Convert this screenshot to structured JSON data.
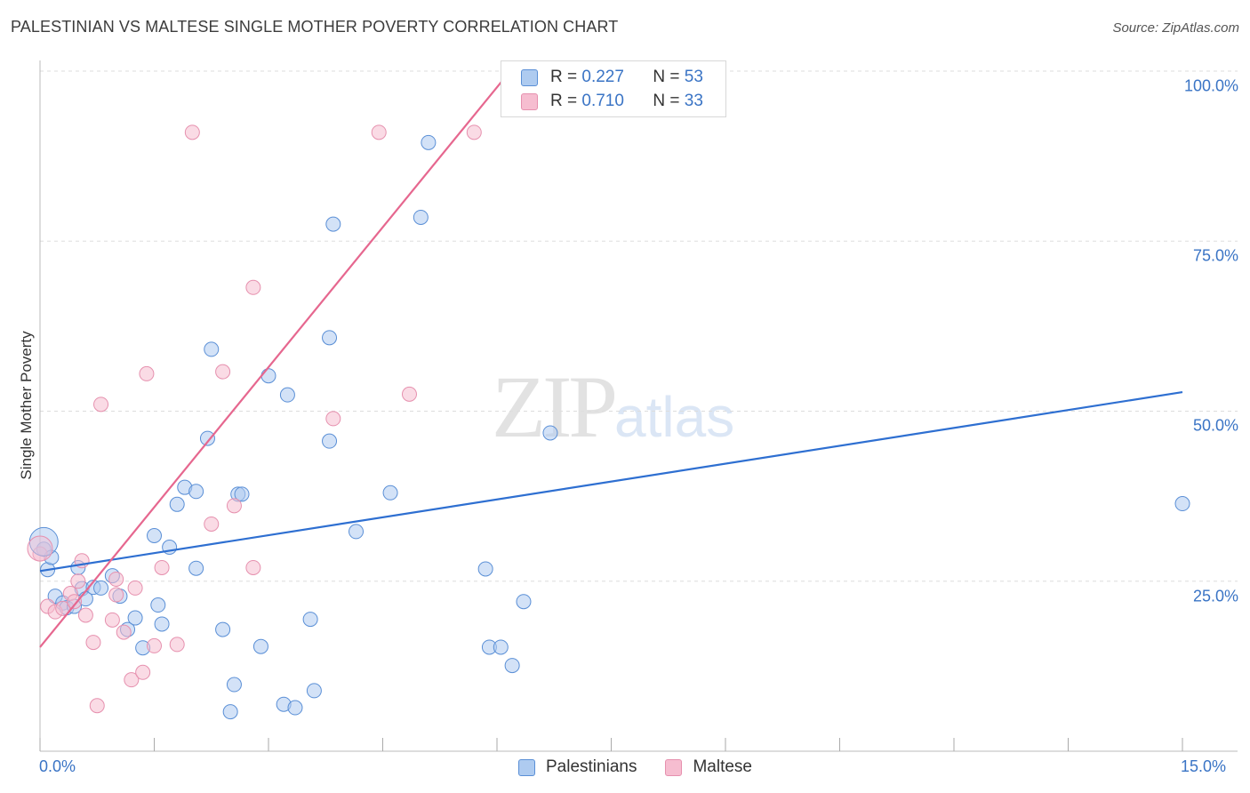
{
  "header": {
    "title": "PALESTINIAN VS MALTESE SINGLE MOTHER POVERTY CORRELATION CHART",
    "source": "Source: ZipAtlas.com"
  },
  "watermark": {
    "zip": "ZIP",
    "atlas": "atlas"
  },
  "colors": {
    "blue": "#3a74c5",
    "blue_fill": "#aecbf0",
    "blue_stroke": "#5a8fd6",
    "blue_line": "#2e6fd1",
    "pink": "#e8709a",
    "pink_fill": "#f6bdd0",
    "pink_stroke": "#e690ae",
    "pink_line": "#e6678f",
    "grid": "#dddddd"
  },
  "legend": {
    "rows": [
      {
        "r_label": "R =",
        "r_value": "0.227",
        "n_label": "N =",
        "n_value": "53"
      },
      {
        "r_label": "R =",
        "r_value": "0.710",
        "n_label": "N =",
        "n_value": "33"
      }
    ],
    "bottom": [
      {
        "label": "Palestinians"
      },
      {
        "label": "Maltese"
      }
    ]
  },
  "chart_data": {
    "type": "scatter",
    "title": "PALESTINIAN VS MALTESE SINGLE MOTHER POVERTY CORRELATION CHART",
    "xlabel": "",
    "ylabel": "Single Mother Poverty",
    "xlim": [
      0,
      15
    ],
    "ylim": [
      0,
      100
    ],
    "x_tick_labels": [
      "0.0%",
      "15.0%"
    ],
    "y_tick_labels": [
      {
        "value": 25,
        "label": "25.0%"
      },
      {
        "value": 50,
        "label": "50.0%"
      },
      {
        "value": 75,
        "label": "75.0%"
      },
      {
        "value": 100,
        "label": "100.0%"
      }
    ],
    "grid": true,
    "series": [
      {
        "name": "Palestinians",
        "r": 0.227,
        "n": 53,
        "trend": {
          "x": [
            0,
            15
          ],
          "y": [
            26.5,
            52.8
          ]
        },
        "points": [
          [
            0.05,
            29.7
          ],
          [
            0.1,
            26.7
          ],
          [
            0.2,
            22.8
          ],
          [
            0.3,
            21.8
          ],
          [
            0.35,
            21.1
          ],
          [
            0.45,
            21.3
          ],
          [
            0.55,
            23.9
          ],
          [
            0.6,
            22.4
          ],
          [
            0.7,
            24.1
          ],
          [
            0.8,
            24.0
          ],
          [
            0.95,
            25.8
          ],
          [
            1.05,
            22.8
          ],
          [
            1.15,
            17.9
          ],
          [
            1.25,
            19.6
          ],
          [
            1.35,
            15.2
          ],
          [
            1.5,
            31.7
          ],
          [
            1.55,
            21.5
          ],
          [
            1.6,
            18.7
          ],
          [
            1.7,
            30.0
          ],
          [
            1.8,
            36.3
          ],
          [
            1.9,
            38.8
          ],
          [
            2.05,
            38.2
          ],
          [
            2.05,
            26.9
          ],
          [
            2.2,
            46.0
          ],
          [
            2.25,
            59.1
          ],
          [
            2.4,
            17.9
          ],
          [
            2.5,
            5.8
          ],
          [
            2.55,
            9.8
          ],
          [
            2.6,
            37.8
          ],
          [
            2.65,
            37.8
          ],
          [
            2.9,
            15.4
          ],
          [
            3.0,
            55.2
          ],
          [
            3.25,
            52.4
          ],
          [
            3.2,
            6.9
          ],
          [
            3.35,
            6.4
          ],
          [
            3.55,
            19.4
          ],
          [
            3.6,
            8.9
          ],
          [
            3.8,
            45.6
          ],
          [
            3.85,
            77.5
          ],
          [
            3.8,
            60.8
          ],
          [
            4.15,
            32.3
          ],
          [
            4.6,
            38.0
          ],
          [
            5.0,
            78.5
          ],
          [
            5.1,
            89.5
          ],
          [
            5.85,
            26.8
          ],
          [
            5.9,
            15.3
          ],
          [
            6.05,
            15.3
          ],
          [
            6.2,
            12.6
          ],
          [
            6.35,
            22.0
          ],
          [
            6.7,
            46.8
          ],
          [
            15.0,
            36.4
          ],
          [
            0.15,
            28.5
          ],
          [
            0.5,
            27.0
          ]
        ]
      },
      {
        "name": "Maltese",
        "r": 0.71,
        "n": 33,
        "trend": {
          "x": [
            0,
            6.1
          ],
          "y": [
            15.3,
            99.0
          ]
        },
        "points": [
          [
            0.0,
            29.0
          ],
          [
            0.1,
            21.3
          ],
          [
            0.2,
            20.5
          ],
          [
            0.3,
            21.0
          ],
          [
            0.4,
            23.2
          ],
          [
            0.45,
            22.0
          ],
          [
            0.5,
            25.0
          ],
          [
            0.55,
            28.0
          ],
          [
            0.6,
            20.0
          ],
          [
            0.7,
            16.0
          ],
          [
            0.75,
            6.7
          ],
          [
            0.8,
            51.0
          ],
          [
            0.95,
            19.3
          ],
          [
            1.0,
            23.0
          ],
          [
            1.1,
            17.5
          ],
          [
            1.2,
            10.5
          ],
          [
            1.25,
            24.0
          ],
          [
            1.35,
            11.6
          ],
          [
            1.4,
            55.5
          ],
          [
            1.5,
            15.5
          ],
          [
            1.6,
            27.0
          ],
          [
            1.8,
            15.7
          ],
          [
            2.0,
            91.0
          ],
          [
            2.25,
            33.4
          ],
          [
            2.4,
            55.8
          ],
          [
            2.55,
            36.1
          ],
          [
            2.8,
            68.2
          ],
          [
            2.8,
            27.0
          ],
          [
            3.85,
            48.9
          ],
          [
            4.45,
            91.0
          ],
          [
            4.85,
            52.5
          ],
          [
            5.7,
            91.0
          ],
          [
            1.0,
            25.3
          ]
        ]
      }
    ]
  }
}
